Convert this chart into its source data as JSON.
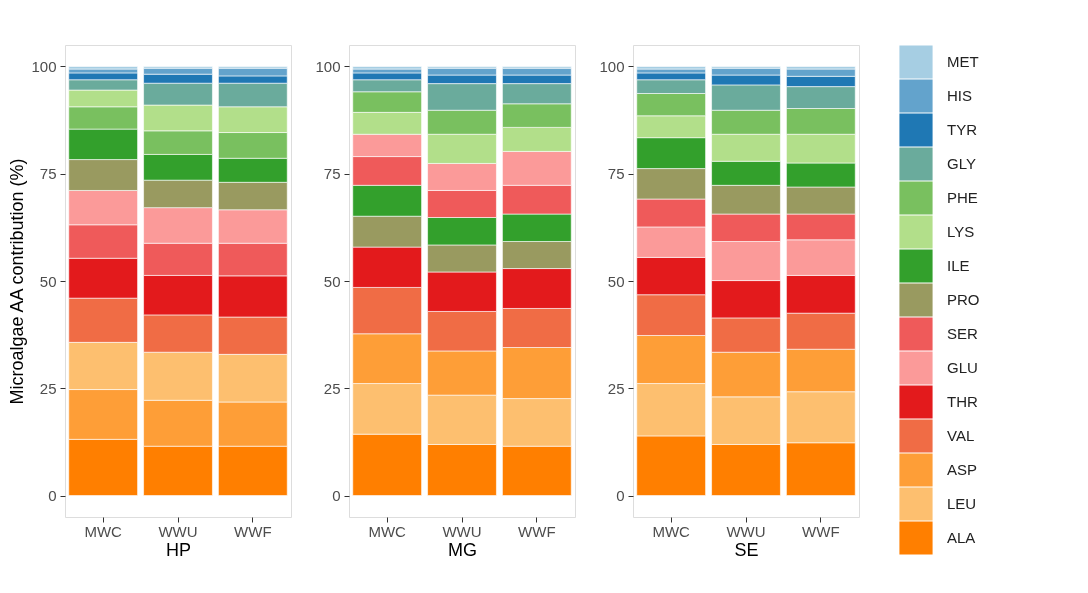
{
  "chart_data": [
    {
      "type": "bar",
      "stacked": true,
      "xlabel": "HP",
      "ylabel": "Microalgae AA contribution (%)",
      "categories": [
        "MWC",
        "WWU",
        "WWF"
      ],
      "ylim": [
        -5,
        105
      ],
      "yticks": [
        0,
        25,
        50,
        75,
        100
      ],
      "grid": false,
      "legend": false,
      "series": [
        {
          "color": "#ff7f00",
          "values": [
            13.1,
            11.5,
            11.5
          ]
        },
        {
          "color": "#fe9e37",
          "values": [
            11.6,
            10.7,
            10.3
          ]
        },
        {
          "color": "#fdbf6f",
          "values": [
            11.0,
            11.2,
            11.1
          ]
        },
        {
          "color": "#f06c45",
          "values": [
            10.3,
            8.7,
            8.7
          ]
        },
        {
          "color": "#e31a1c",
          "values": [
            9.3,
            9.2,
            9.6
          ]
        },
        {
          "color": "#ef5a5a",
          "values": [
            7.8,
            7.5,
            7.6
          ]
        },
        {
          "color": "#fb9a99",
          "values": [
            8.0,
            8.3,
            7.8
          ]
        },
        {
          "color": "#999a60",
          "values": [
            7.2,
            6.4,
            6.4
          ]
        },
        {
          "color": "#33a02c",
          "values": [
            7.1,
            6.0,
            5.6
          ]
        },
        {
          "color": "#79c05f",
          "values": [
            5.2,
            5.5,
            6.0
          ]
        },
        {
          "color": "#b2df8a",
          "values": [
            3.9,
            6.0,
            6.0
          ]
        },
        {
          "color": "#6aab9c",
          "values": [
            2.4,
            5.1,
            5.5
          ]
        },
        {
          "color": "#1f78b4",
          "values": [
            1.6,
            2.1,
            1.7
          ]
        },
        {
          "color": "#63a3cc",
          "values": [
            0.9,
            1.4,
            1.8
          ]
        },
        {
          "color": "#a6cee3",
          "values": [
            0.6,
            0.4,
            0.4
          ]
        }
      ]
    },
    {
      "type": "bar",
      "stacked": true,
      "xlabel": "MG",
      "categories": [
        "MWC",
        "WWU",
        "WWF"
      ],
      "ylim": [
        -5,
        105
      ],
      "yticks": [
        0,
        25,
        50,
        75,
        100
      ],
      "grid": false,
      "legend": false,
      "series": [
        {
          "color": "#ff7f00",
          "values": [
            14.3,
            11.9,
            11.5
          ]
        },
        {
          "color": "#fdbf6f",
          "values": [
            11.8,
            11.5,
            11.1
          ]
        },
        {
          "color": "#fe9e37",
          "values": [
            11.6,
            10.3,
            11.9
          ]
        },
        {
          "color": "#f06c45",
          "values": [
            10.8,
            9.2,
            9.1
          ]
        },
        {
          "color": "#e31a1c",
          "values": [
            9.4,
            9.2,
            9.3
          ]
        },
        {
          "color": "#999a60",
          "values": [
            7.2,
            6.3,
            6.3
          ]
        },
        {
          "color": "#33a02c",
          "values": [
            7.2,
            6.4,
            6.4
          ]
        },
        {
          "color": "#ef5a5a",
          "values": [
            6.7,
            6.3,
            6.7
          ]
        },
        {
          "color": "#fb9a99",
          "values": [
            5.2,
            6.3,
            7.9
          ]
        },
        {
          "color": "#b2df8a",
          "values": [
            5.1,
            6.8,
            5.6
          ]
        },
        {
          "color": "#79c05f",
          "values": [
            4.8,
            5.6,
            5.5
          ]
        },
        {
          "color": "#6aab9c",
          "values": [
            2.8,
            6.2,
            4.7
          ]
        },
        {
          "color": "#1f78b4",
          "values": [
            1.6,
            2.0,
            2.0
          ]
        },
        {
          "color": "#63a3cc",
          "values": [
            0.9,
            1.6,
            1.6
          ]
        },
        {
          "color": "#a6cee3",
          "values": [
            0.6,
            0.4,
            0.4
          ]
        }
      ]
    },
    {
      "type": "bar",
      "stacked": true,
      "xlabel": "SE",
      "categories": [
        "MWC",
        "WWU",
        "WWF"
      ],
      "ylim": [
        -5,
        105
      ],
      "yticks": [
        0,
        25,
        50,
        75,
        100
      ],
      "grid": false,
      "legend": "right",
      "series": [
        {
          "name": "ALA",
          "color": "#ff7f00",
          "values": [
            13.9,
            11.9,
            12.3
          ]
        },
        {
          "name": "LEU",
          "color": "#fdbf6f",
          "values": [
            12.2,
            11.1,
            11.9
          ]
        },
        {
          "name": "ASP",
          "color": "#fe9e37",
          "values": [
            11.2,
            10.4,
            9.9
          ]
        },
        {
          "name": "VAL",
          "color": "#f06c45",
          "values": [
            9.5,
            8.0,
            8.4
          ]
        },
        {
          "name": "THR",
          "color": "#e31a1c",
          "values": [
            8.7,
            8.7,
            8.8
          ]
        },
        {
          "name": "GLU",
          "color": "#fb9a99",
          "values": [
            7.1,
            9.1,
            8.3
          ]
        },
        {
          "name": "SER",
          "color": "#ef5a5a",
          "values": [
            6.5,
            6.4,
            6.0
          ]
        },
        {
          "name": "PRO",
          "color": "#999a60",
          "values": [
            7.1,
            6.7,
            6.3
          ]
        },
        {
          "name": "ILE",
          "color": "#33a02c",
          "values": [
            7.2,
            5.6,
            5.6
          ]
        },
        {
          "name": "LYS",
          "color": "#b2df8a",
          "values": [
            5.1,
            6.3,
            6.7
          ]
        },
        {
          "name": "PHE",
          "color": "#79c05f",
          "values": [
            5.2,
            5.6,
            6.0
          ]
        },
        {
          "name": "GLY",
          "color": "#6aab9c",
          "values": [
            3.2,
            5.9,
            5.1
          ]
        },
        {
          "name": "TYR",
          "color": "#1f78b4",
          "values": [
            1.6,
            2.3,
            2.4
          ]
        },
        {
          "name": "HIS",
          "color": "#63a3cc",
          "values": [
            0.9,
            1.6,
            1.7
          ]
        },
        {
          "name": "MET",
          "color": "#a6cee3",
          "values": [
            0.6,
            0.4,
            0.6
          ]
        }
      ]
    }
  ]
}
